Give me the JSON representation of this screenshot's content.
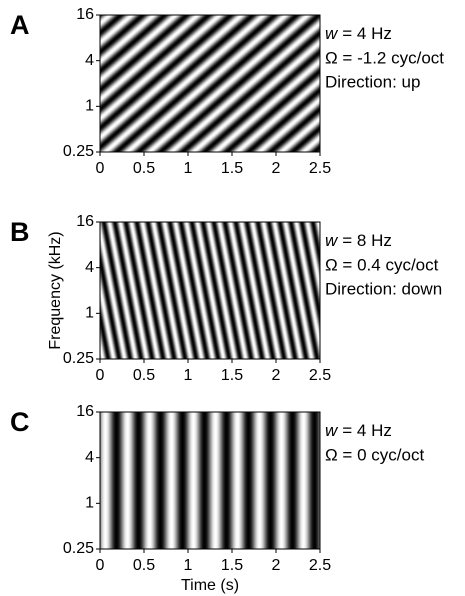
{
  "chart_data": [
    {
      "type": "ripple",
      "panel": "A",
      "rate_hz": 4,
      "density_cyc_oct": -1.2,
      "annotations": {
        "rate": {
          "symbol": "w",
          "text": "= 4 Hz"
        },
        "density": "Ω = -1.2 cyc/oct",
        "direction": "Direction: up"
      },
      "xlim": [
        0,
        2.5
      ],
      "xticks": [
        0,
        0.5,
        1,
        1.5,
        2,
        2.5
      ],
      "ylim": [
        0.25,
        16
      ],
      "yticks": [
        0.25,
        1,
        4,
        16
      ],
      "ylog": true
    },
    {
      "type": "ripple",
      "panel": "B",
      "rate_hz": 8,
      "density_cyc_oct": 0.4,
      "annotations": {
        "rate": {
          "symbol": "w",
          "text": "= 8 Hz"
        },
        "density": "Ω = 0.4 cyc/oct",
        "direction": "Direction: down"
      },
      "ylabel": "Frequency (kHz)",
      "xlim": [
        0,
        2.5
      ],
      "xticks": [
        0,
        0.5,
        1,
        1.5,
        2,
        2.5
      ],
      "ylim": [
        0.25,
        16
      ],
      "yticks": [
        0.25,
        1,
        4,
        16
      ],
      "ylog": true
    },
    {
      "type": "ripple",
      "panel": "C",
      "rate_hz": 4,
      "density_cyc_oct": 0,
      "annotations": {
        "rate": {
          "symbol": "w",
          "text": "= 4 Hz"
        },
        "density": "Ω = 0 cyc/oct"
      },
      "xlabel": "Time (s)",
      "xlim": [
        0,
        2.5
      ],
      "xticks": [
        0,
        0.5,
        1,
        1.5,
        2,
        2.5
      ],
      "ylim": [
        0.25,
        16
      ],
      "yticks": [
        0.25,
        1,
        4,
        16
      ],
      "ylog": true
    }
  ]
}
